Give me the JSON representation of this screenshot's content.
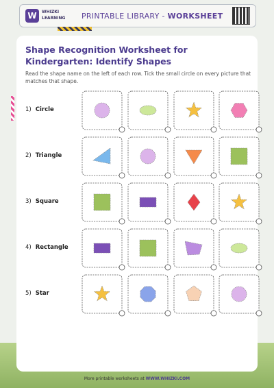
{
  "header": {
    "logo_top": "WHIZKI",
    "logo_bottom": "LEARNING",
    "library": "PRINTABLE LIBRARY - ",
    "kind": "WORKSHEET"
  },
  "title": "Shape Recognition Worksheet for Kindergarten: Identify Shapes",
  "instructions": "Read the shape name on the left of each row. Tick the small circle on every picture that matches that shape.",
  "rows": [
    {
      "number": "1)",
      "name": "Circle"
    },
    {
      "number": "2)",
      "name": "Triangle"
    },
    {
      "number": "3)",
      "name": "Square"
    },
    {
      "number": "4)",
      "name": "Rectangle"
    },
    {
      "number": "5)",
      "name": "Star"
    }
  ],
  "footer": {
    "text": "More printable worksheets at ",
    "link": "WWW.WHIZKI.COM"
  }
}
